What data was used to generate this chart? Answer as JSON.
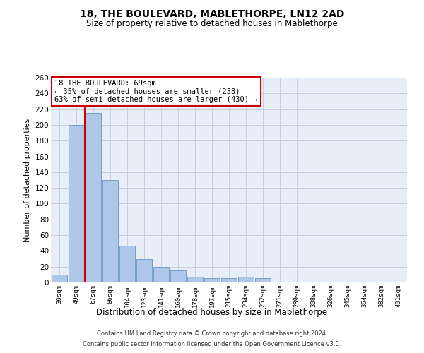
{
  "title": "18, THE BOULEVARD, MABLETHORPE, LN12 2AD",
  "subtitle": "Size of property relative to detached houses in Mablethorpe",
  "xlabel": "Distribution of detached houses by size in Mablethorpe",
  "ylabel": "Number of detached properties",
  "footer_line1": "Contains HM Land Registry data © Crown copyright and database right 2024.",
  "footer_line2": "Contains public sector information licensed under the Open Government Licence v3.0.",
  "categories": [
    "30sqm",
    "49sqm",
    "67sqm",
    "86sqm",
    "104sqm",
    "123sqm",
    "141sqm",
    "160sqm",
    "178sqm",
    "197sqm",
    "215sqm",
    "234sqm",
    "252sqm",
    "271sqm",
    "289sqm",
    "308sqm",
    "326sqm",
    "345sqm",
    "364sqm",
    "382sqm",
    "401sqm"
  ],
  "values": [
    10,
    200,
    215,
    130,
    47,
    30,
    20,
    15,
    7,
    5,
    5,
    7,
    5,
    1,
    0,
    1,
    0,
    0,
    0,
    0,
    1
  ],
  "bar_color": "#aec6e8",
  "bar_edge_color": "#5588bb",
  "grid_color": "#c8d0e0",
  "background_color": "#e8eef8",
  "vline_x_index": 2,
  "vline_color": "#cc0000",
  "annotation_title": "18 THE BOULEVARD: 69sqm",
  "annotation_line2": "← 35% of detached houses are smaller (238)",
  "annotation_line3": "63% of semi-detached houses are larger (430) →",
  "annotation_box_color": "#ffffff",
  "annotation_border_color": "#cc0000",
  "ylim": [
    0,
    260
  ],
  "yticks": [
    0,
    20,
    40,
    60,
    80,
    100,
    120,
    140,
    160,
    180,
    200,
    220,
    240,
    260
  ],
  "title_fontsize": 10,
  "subtitle_fontsize": 8.5
}
